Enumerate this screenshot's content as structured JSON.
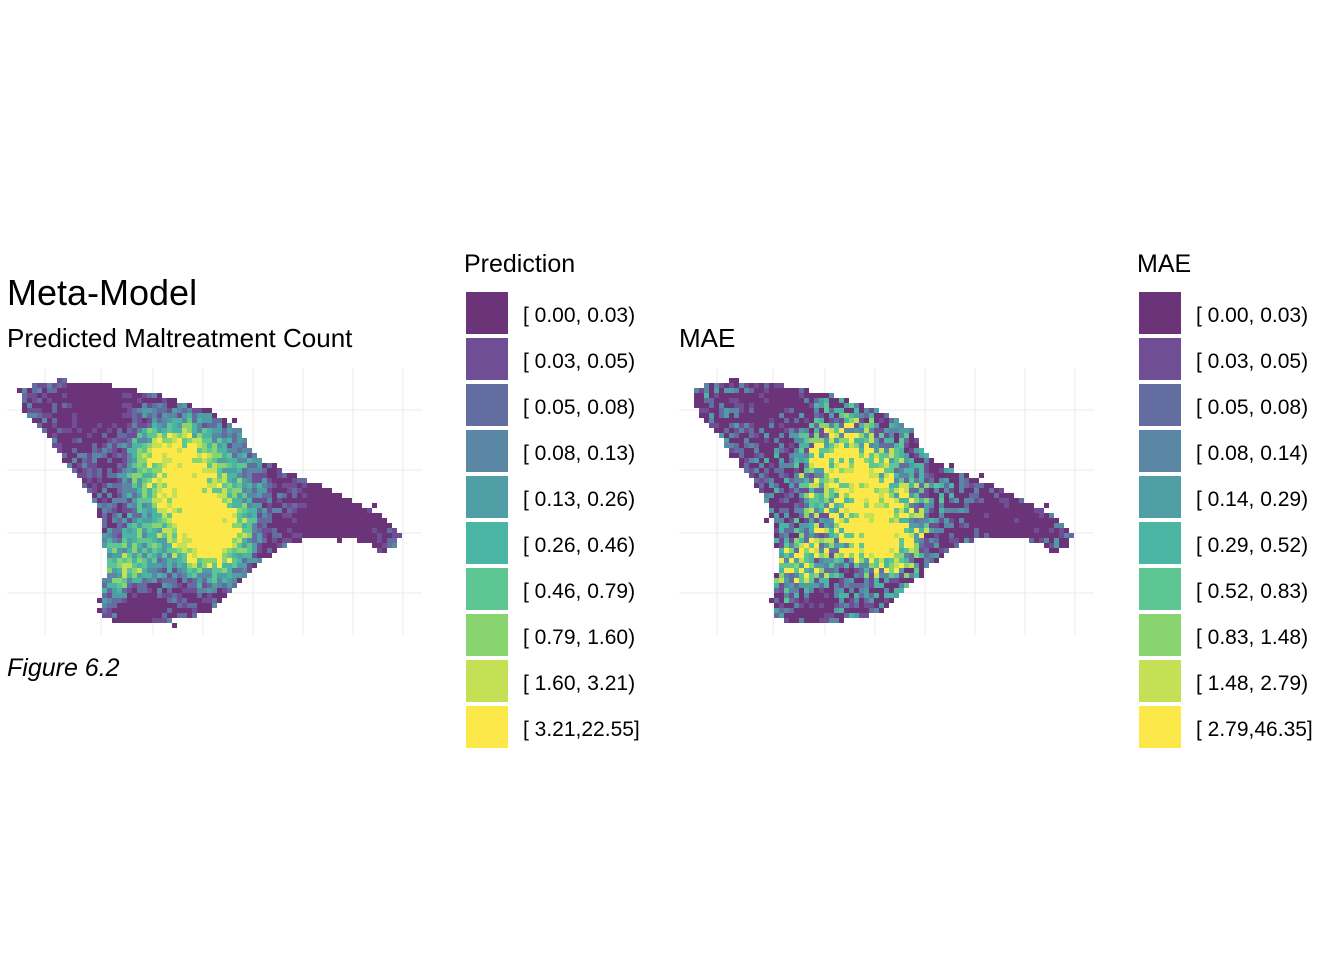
{
  "left_panel": {
    "title": "Meta-Model",
    "subtitle": "Predicted Maltreatment Count",
    "caption": "Figure 6.2",
    "legend": {
      "title": "Prediction",
      "labels": [
        "[ 0.00, 0.03)",
        "[ 0.03, 0.05)",
        "[ 0.05, 0.08)",
        "[ 0.08, 0.13)",
        "[ 0.13, 0.26)",
        "[ 0.26, 0.46)",
        "[ 0.46, 0.79)",
        "[ 0.79, 1.60)",
        "[ 1.60, 3.21)",
        "[ 3.21,22.55]"
      ]
    }
  },
  "right_panel": {
    "title": "MAE",
    "legend": {
      "title": "MAE",
      "labels": [
        "[ 0.00, 0.03)",
        "[ 0.03, 0.05)",
        "[ 0.05, 0.08)",
        "[ 0.08, 0.14)",
        "[ 0.14, 0.29)",
        "[ 0.29, 0.52)",
        "[ 0.52, 0.83)",
        "[ 0.83, 1.48)",
        "[ 1.48, 2.79)",
        "[ 2.79,46.35]"
      ]
    }
  },
  "colors": {
    "bins": [
      "#6b3479",
      "#6f4e95",
      "#646da0",
      "#5a87a3",
      "#4f9ea6",
      "#4ab5a2",
      "#5ec693",
      "#88d46e",
      "#c4e054",
      "#fde84a"
    ],
    "grid": "#ebebeb",
    "background": "#ffffff"
  }
}
